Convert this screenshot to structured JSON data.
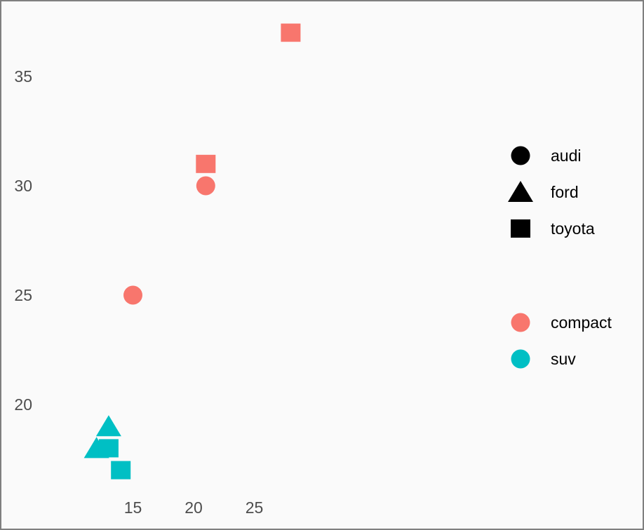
{
  "chart_data": {
    "type": "scatter",
    "title": "",
    "xlabel": "",
    "ylabel": "",
    "xlim": [
      11,
      33
    ],
    "ylim": [
      16,
      37.5
    ],
    "x_ticks": [
      "15",
      "20",
      "25"
    ],
    "y_ticks": [
      "20",
      "25",
      "30",
      "35"
    ],
    "grid": false,
    "legend_position": "right",
    "points": [
      {
        "x": 28,
        "y": 37,
        "manufacturer": "toyota",
        "class": "compact"
      },
      {
        "x": 21,
        "y": 31,
        "manufacturer": "toyota",
        "class": "compact"
      },
      {
        "x": 21,
        "y": 30,
        "manufacturer": "audi",
        "class": "compact"
      },
      {
        "x": 15,
        "y": 25,
        "manufacturer": "audi",
        "class": "compact"
      },
      {
        "x": 13,
        "y": 19,
        "manufacturer": "ford",
        "class": "suv"
      },
      {
        "x": 12,
        "y": 18,
        "manufacturer": "ford",
        "class": "suv"
      },
      {
        "x": 13,
        "y": 18,
        "manufacturer": "toyota",
        "class": "suv"
      },
      {
        "x": 14,
        "y": 17,
        "manufacturer": "toyota",
        "class": "suv"
      }
    ],
    "shape_legend": [
      {
        "label": "audi",
        "shape": "circle"
      },
      {
        "label": "ford",
        "shape": "triangle"
      },
      {
        "label": "toyota",
        "shape": "square"
      }
    ],
    "color_legend": [
      {
        "label": "compact",
        "color": "#F8766D"
      },
      {
        "label": "suv",
        "color": "#00BFC4"
      }
    ]
  }
}
